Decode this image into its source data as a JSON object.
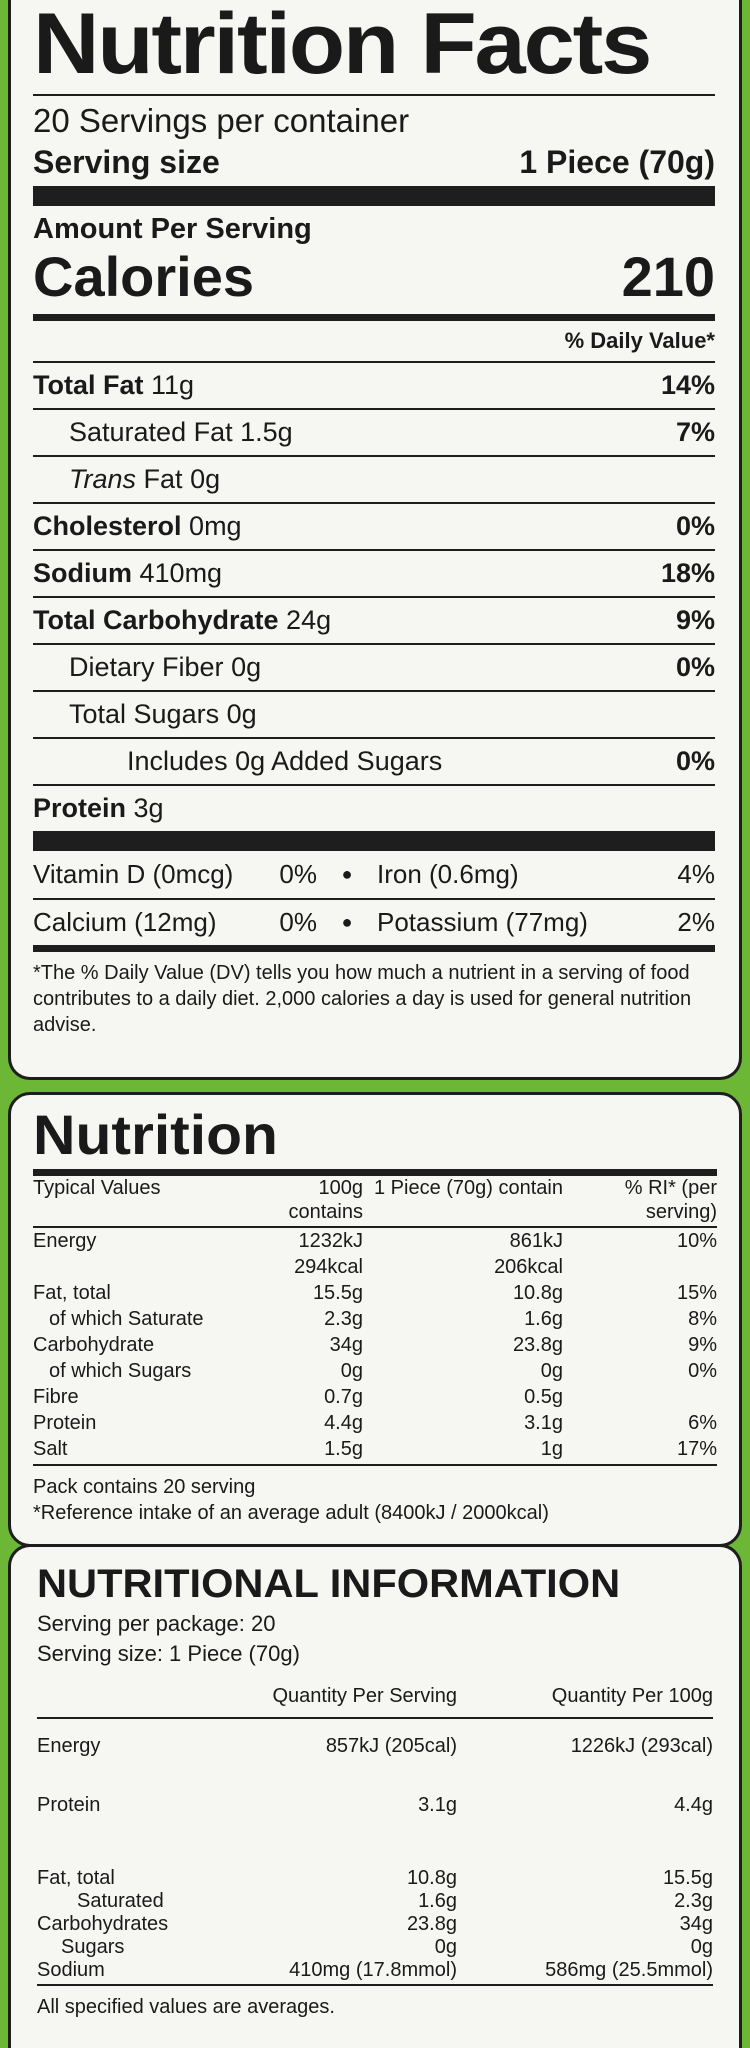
{
  "us": {
    "title": "Nutrition Facts",
    "servings_per_container": "20 Servings per container",
    "serving_size_label": "Serving size",
    "serving_size_value": "1 Piece (70g)",
    "amount_per_serving": "Amount Per Serving",
    "calories_label": "Calories",
    "calories_value": "210",
    "dv_header": "% Daily Value*",
    "nutrients": [
      {
        "name": "Total Fat",
        "amount": "11g",
        "dv": "14%"
      },
      {
        "name": "Saturated Fat",
        "amount": "1.5g",
        "dv": "7%"
      },
      {
        "name_italic": "Trans",
        "name": "Fat",
        "amount": "0g",
        "dv": ""
      },
      {
        "name": "Cholesterol",
        "amount": "0mg",
        "dv": "0%"
      },
      {
        "name": "Sodium",
        "amount": "410mg",
        "dv": "18%"
      },
      {
        "name": "Total Carbohydrate",
        "amount": "24g",
        "dv": "9%"
      },
      {
        "name": "Dietary Fiber",
        "amount": "0g",
        "dv": "0%"
      },
      {
        "name": "Total Sugars",
        "amount": "0g",
        "dv": ""
      },
      {
        "name": "Includes 0g Added Sugars",
        "amount": "",
        "dv": "0%"
      },
      {
        "name": "Protein",
        "amount": "3g",
        "dv": ""
      }
    ],
    "vitamins": [
      {
        "a_name": "Vitamin D (0mcg)",
        "a_pct": "0%",
        "b_name": "Iron (0.6mg)",
        "b_pct": "4%"
      },
      {
        "a_name": "Calcium (12mg)",
        "a_pct": "0%",
        "b_name": "Potassium (77mg)",
        "b_pct": "2%"
      }
    ],
    "footnote": "*The % Daily Value (DV) tells you how much a nutrient in a serving of food contributes to a daily diet. 2,000 calories a day is used for general nutrition advise."
  },
  "uk": {
    "title": "Nutrition",
    "headers": [
      "Typical Values",
      "100g contains",
      "1 Piece (70g) contain",
      "% RI* (per serving)"
    ],
    "rows": [
      {
        "label": "Energy",
        "per100": "1232kJ",
        "per_piece": "861kJ",
        "ri": "10%"
      },
      {
        "label": "",
        "per100": "294kcal",
        "per_piece": "206kcal",
        "ri": ""
      },
      {
        "label": "Fat, total",
        "per100": "15.5g",
        "per_piece": "10.8g",
        "ri": "15%"
      },
      {
        "label": "of which Saturate",
        "per100": "2.3g",
        "per_piece": "1.6g",
        "ri": "8%"
      },
      {
        "label": "Carbohydrate",
        "per100": "34g",
        "per_piece": "23.8g",
        "ri": "9%"
      },
      {
        "label": "of which Sugars",
        "per100": "0g",
        "per_piece": "0g",
        "ri": "0%"
      },
      {
        "label": "Fibre",
        "per100": "0.7g",
        "per_piece": "0.5g",
        "ri": ""
      },
      {
        "label": "Protein",
        "per100": "4.4g",
        "per_piece": "3.1g",
        "ri": "6%"
      },
      {
        "label": "Salt",
        "per100": "1.5g",
        "per_piece": "1g",
        "ri": "17%"
      }
    ],
    "pack_note": "Pack contains 20 serving",
    "ri_note": "*Reference intake of an average adult (8400kJ / 2000kcal)"
  },
  "au": {
    "title": "NUTRITIONAL INFORMATION",
    "servings_per_package": "Serving per package: 20",
    "serving_size": "Serving size:  1 Piece (70g)",
    "headers": [
      "",
      "Quantity Per Serving",
      "Quantity Per 100g"
    ],
    "rows": [
      {
        "label": "Energy",
        "per_serving": "857kJ (205cal)",
        "per100": "1226kJ (293cal)"
      },
      {
        "label": "Protein",
        "per_serving": "3.1g",
        "per100": "4.4g"
      },
      {
        "label": "Fat, total",
        "per_serving": "10.8g",
        "per100": "15.5g"
      },
      {
        "label": "Saturated",
        "per_serving": "1.6g",
        "per100": "2.3g"
      },
      {
        "label": "Carbohydrates",
        "per_serving": "23.8g",
        "per100": "34g"
      },
      {
        "label": "Sugars",
        "per_serving": "0g",
        "per100": "0g"
      },
      {
        "label": "Sodium",
        "per_serving": "410mg (17.8mmol)",
        "per100": "586mg (25.5mmol)"
      }
    ],
    "footer": "All specified values are averages."
  }
}
